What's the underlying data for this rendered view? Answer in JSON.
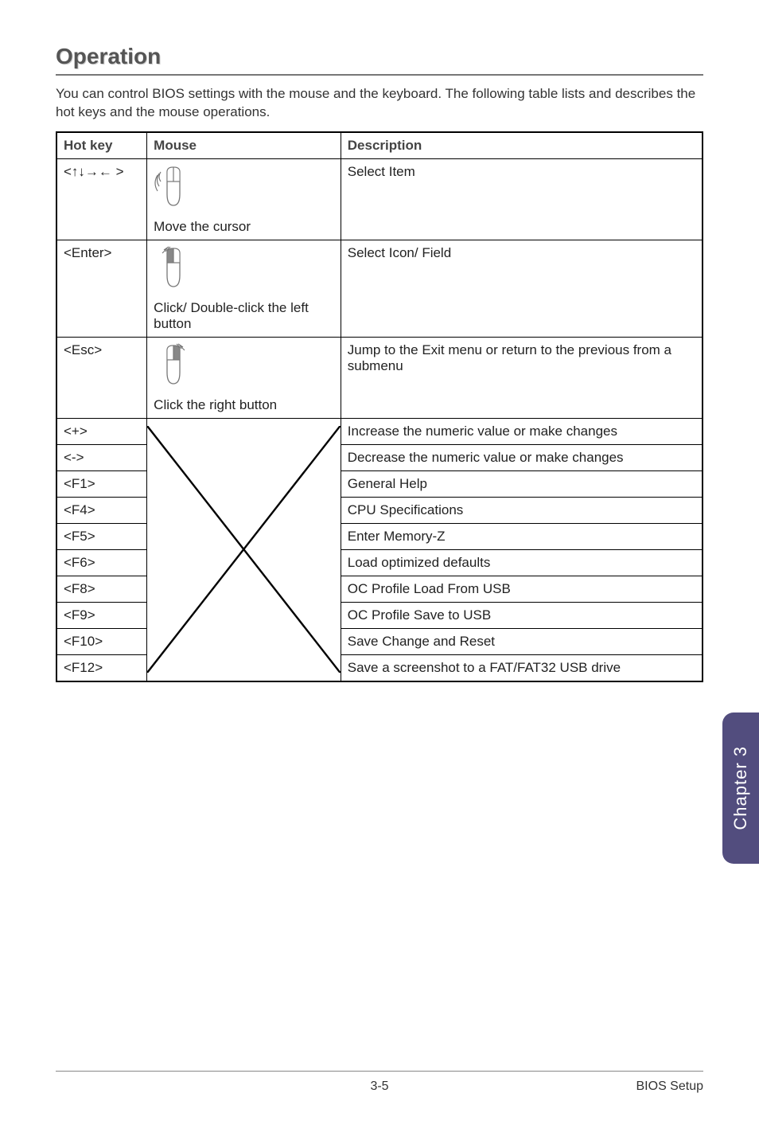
{
  "heading": "Operation",
  "intro": "You can control BIOS settings with the mouse and the keyboard. The following table lists and describes the hot keys and the mouse operations.",
  "table": {
    "headers": [
      "Hot key",
      "Mouse",
      "Description"
    ],
    "col_widths_pct": [
      14,
      30,
      56
    ],
    "rows_top": [
      {
        "hotkey": "<↑↓→← >",
        "mouse_label": "Move the cursor",
        "description": "Select Item",
        "icon": "mouse-move"
      },
      {
        "hotkey": "<Enter>",
        "mouse_label": "Click/ Double-click the left button",
        "description": "Select Icon/ Field",
        "icon": "mouse-left"
      },
      {
        "hotkey": "<Esc>",
        "mouse_label": "Click the right button",
        "description": "Jump to the Exit menu or return to the previous from a submenu",
        "icon": "mouse-right"
      }
    ],
    "rows_bottom": [
      {
        "hotkey": "<+>",
        "description": "Increase the numeric value or make changes"
      },
      {
        "hotkey": "<->",
        "description": "Decrease the numeric value or make changes"
      },
      {
        "hotkey": "<F1>",
        "description": "General Help"
      },
      {
        "hotkey": "<F4>",
        "description": "CPU Specifications"
      },
      {
        "hotkey": "<F5>",
        "description": "Enter Memory-Z"
      },
      {
        "hotkey": "<F6>",
        "description": "Load optimized defaults"
      },
      {
        "hotkey": "<F8>",
        "description": "OC Profile Load From USB"
      },
      {
        "hotkey": "<F9>",
        "description": "OC Profile Save to USB"
      },
      {
        "hotkey": "<F10>",
        "description": "Save Change and Reset"
      },
      {
        "hotkey": "<F12>",
        "description": "Save a screenshot to a FAT/FAT32 USB drive"
      }
    ]
  },
  "side_tab": "Chapter 3",
  "footer": {
    "page": "3-5",
    "section": "BIOS Setup"
  },
  "colors": {
    "heading": "#555555",
    "text": "#222222",
    "rule": "#777777",
    "border": "#000000",
    "tab_bg": "#524d7e",
    "tab_text": "#ffffff",
    "footer_rule": "#888888",
    "mouse_stroke": "#777777",
    "mouse_fill_dark": "#888888",
    "x_stroke": "#000000"
  },
  "fonts": {
    "heading_pt": 21,
    "body_pt": 13,
    "table_pt": 13,
    "tab_pt": 17,
    "footer_pt": 12
  }
}
